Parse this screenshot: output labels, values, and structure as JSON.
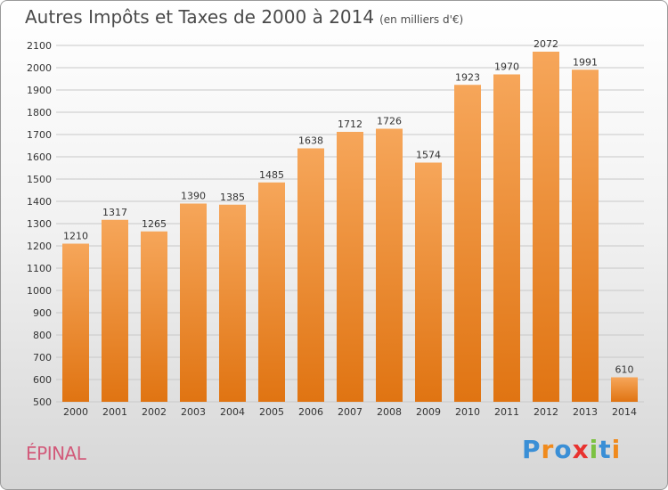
{
  "page": {
    "title": "Autres Impôts et Taxes de 2000 à 2014",
    "subtitle": "(en milliers d'€)",
    "city": "ÉPINAL",
    "logo": {
      "text": "Proxiti",
      "letter_colors": [
        "#3a8fd6",
        "#f08a1c",
        "#3a8fd6",
        "#e8322f",
        "#7cc242",
        "#3a8fd6",
        "#f08a1c"
      ]
    }
  },
  "colors": {
    "bar_top": "#f6a65a",
    "bar_bottom": "#e07412",
    "grid": "#c8c8c8",
    "axis_text": "#333333",
    "city": "#d25a7a"
  },
  "chart_data": {
    "type": "bar",
    "title": "Autres Impôts et Taxes de 2000 à 2014",
    "subtitle": "(en milliers d'€)",
    "categories": [
      "2000",
      "2001",
      "2002",
      "2003",
      "2004",
      "2005",
      "2006",
      "2007",
      "2008",
      "2009",
      "2010",
      "2011",
      "2012",
      "2013",
      "2014"
    ],
    "values": [
      1210,
      1317,
      1265,
      1390,
      1385,
      1485,
      1638,
      1712,
      1726,
      1574,
      1923,
      1970,
      2072,
      1991,
      610
    ],
    "ylim": [
      500,
      2100
    ],
    "yticks": [
      500,
      600,
      700,
      800,
      900,
      1000,
      1100,
      1200,
      1300,
      1400,
      1500,
      1600,
      1700,
      1800,
      1900,
      2000,
      2100
    ],
    "grid": true,
    "legend": "none"
  }
}
